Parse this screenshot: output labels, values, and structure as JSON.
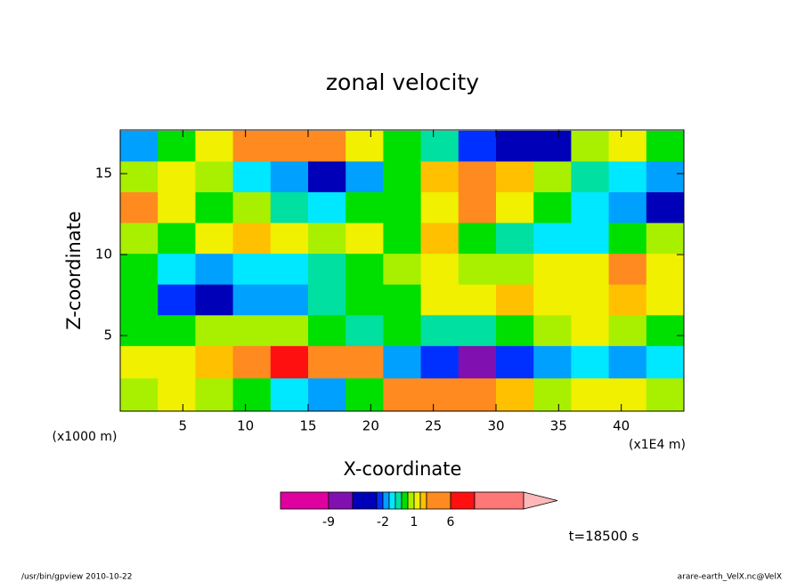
{
  "chart_data": {
    "type": "contour",
    "title": "zonal velocity",
    "xlabel": "X-coordinate",
    "ylabel": "Z-coordinate",
    "x_units": "(x1E4 m)",
    "y_units": "(x1000 m)",
    "annotation": "t=18500 s",
    "footer_left": "/usr/bin/gpview  2010-10-22",
    "footer_right": "arare-earth_VelX.nc@VelX",
    "xlim": [
      0,
      45
    ],
    "xticks": [
      5,
      10,
      15,
      20,
      25,
      30,
      35,
      40
    ],
    "ylim": [
      0.33,
      17.7
    ],
    "yticks": [
      5,
      10,
      15
    ],
    "x": [
      1.5,
      4.5,
      7.5,
      10.5,
      13.5,
      16.5,
      19.5,
      22.5,
      25.5,
      28.5,
      31.5,
      34.5,
      37.5,
      40.5,
      43.5
    ],
    "y": [
      16.7,
      14.8,
      12.9,
      11.0,
      9.1,
      7.2,
      5.3,
      3.4,
      1.3
    ],
    "z": [
      [
        -1.5,
        0.2,
        1.5,
        3,
        5,
        4,
        1.5,
        0.2,
        -0.5,
        -3,
        -6,
        -4,
        0.5,
        1.5,
        0.3
      ],
      [
        0.5,
        1.5,
        0.8,
        -1,
        -2,
        -6,
        -2,
        0.2,
        2,
        5,
        2,
        0.5,
        -0.5,
        -1,
        -1.5
      ],
      [
        4,
        1.5,
        0.3,
        0.5,
        -0.5,
        -1,
        0.3,
        0.2,
        1.5,
        3,
        1.5,
        0.3,
        -0.8,
        -1.5,
        -4
      ],
      [
        0.8,
        0.3,
        1.5,
        2.5,
        1.5,
        0.5,
        1.5,
        0.2,
        2,
        0.3,
        -0.3,
        -1,
        -0.8,
        0.3,
        0.5
      ],
      [
        0.2,
        -1,
        -1.5,
        -1,
        -1,
        -0.5,
        0.3,
        0.5,
        1,
        0.5,
        0.5,
        1,
        1.5,
        3,
        1.5
      ],
      [
        0.2,
        -2.5,
        -5,
        -1.5,
        -1.5,
        -0.5,
        0.3,
        0,
        1,
        1.5,
        2.5,
        1.5,
        1,
        2,
        1
      ],
      [
        0.3,
        0.2,
        0.5,
        0.5,
        0.5,
        0.2,
        -0.5,
        0.3,
        -0.5,
        -0.3,
        0.2,
        0.8,
        1.5,
        0.8,
        0.3
      ],
      [
        1.5,
        1.8,
        2.5,
        4,
        7,
        4,
        3,
        -2,
        -3,
        -8,
        -3,
        -1.5,
        -1,
        -1.5,
        -1
      ],
      [
        0.5,
        1.5,
        0.8,
        0.3,
        -1,
        -2,
        0.2,
        3,
        5,
        5,
        2,
        0.5,
        1.5,
        1.5,
        0.8
      ]
    ],
    "levels": [
      -9,
      -6,
      -3,
      -2,
      -1,
      -0.5,
      0,
      0.5,
      1,
      2,
      3,
      6,
      9,
      15
    ],
    "colors": [
      "#e000a0",
      "#8010b0",
      "#0000b8",
      "#0030ff",
      "#00a0ff",
      "#00e8ff",
      "#00e0a0",
      "#00e000",
      "#a8f000",
      "#f0f000",
      "#ffc000",
      "#ff8a20",
      "#ff1010",
      "#ff7878",
      "#ffb8b8"
    ],
    "colorbar_ticks": [
      -9,
      -2,
      1,
      6
    ]
  }
}
